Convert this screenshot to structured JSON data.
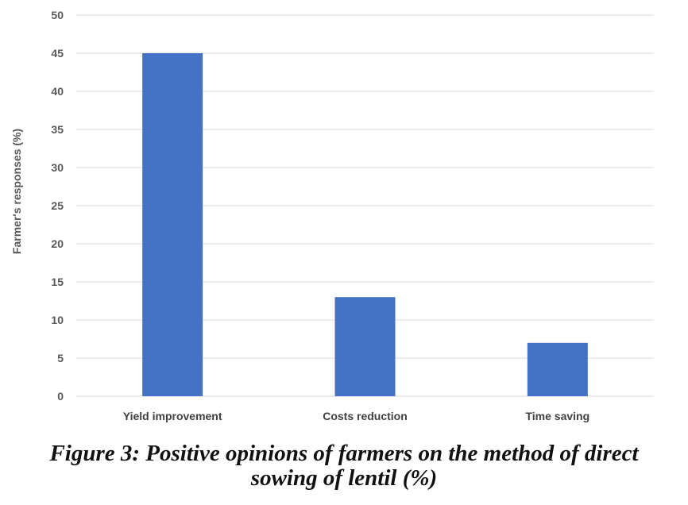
{
  "chart_data": {
    "type": "bar",
    "categories": [
      "Yield improvement",
      "Costs reduction",
      "Time saving"
    ],
    "values": [
      45,
      13,
      7
    ],
    "ylabel": "Farmer's responses (%)",
    "xlabel": "",
    "ylim": [
      0,
      50
    ],
    "yticks": [
      0,
      5,
      10,
      15,
      20,
      25,
      30,
      35,
      40,
      45,
      50
    ],
    "grid": true,
    "bar_color": "#4472C4",
    "grid_color": "#D9D9D9"
  },
  "caption": {
    "line1": "Figure 3: Positive opinions of farmers on the method of direct",
    "line2": "sowing of lentil (%)"
  }
}
